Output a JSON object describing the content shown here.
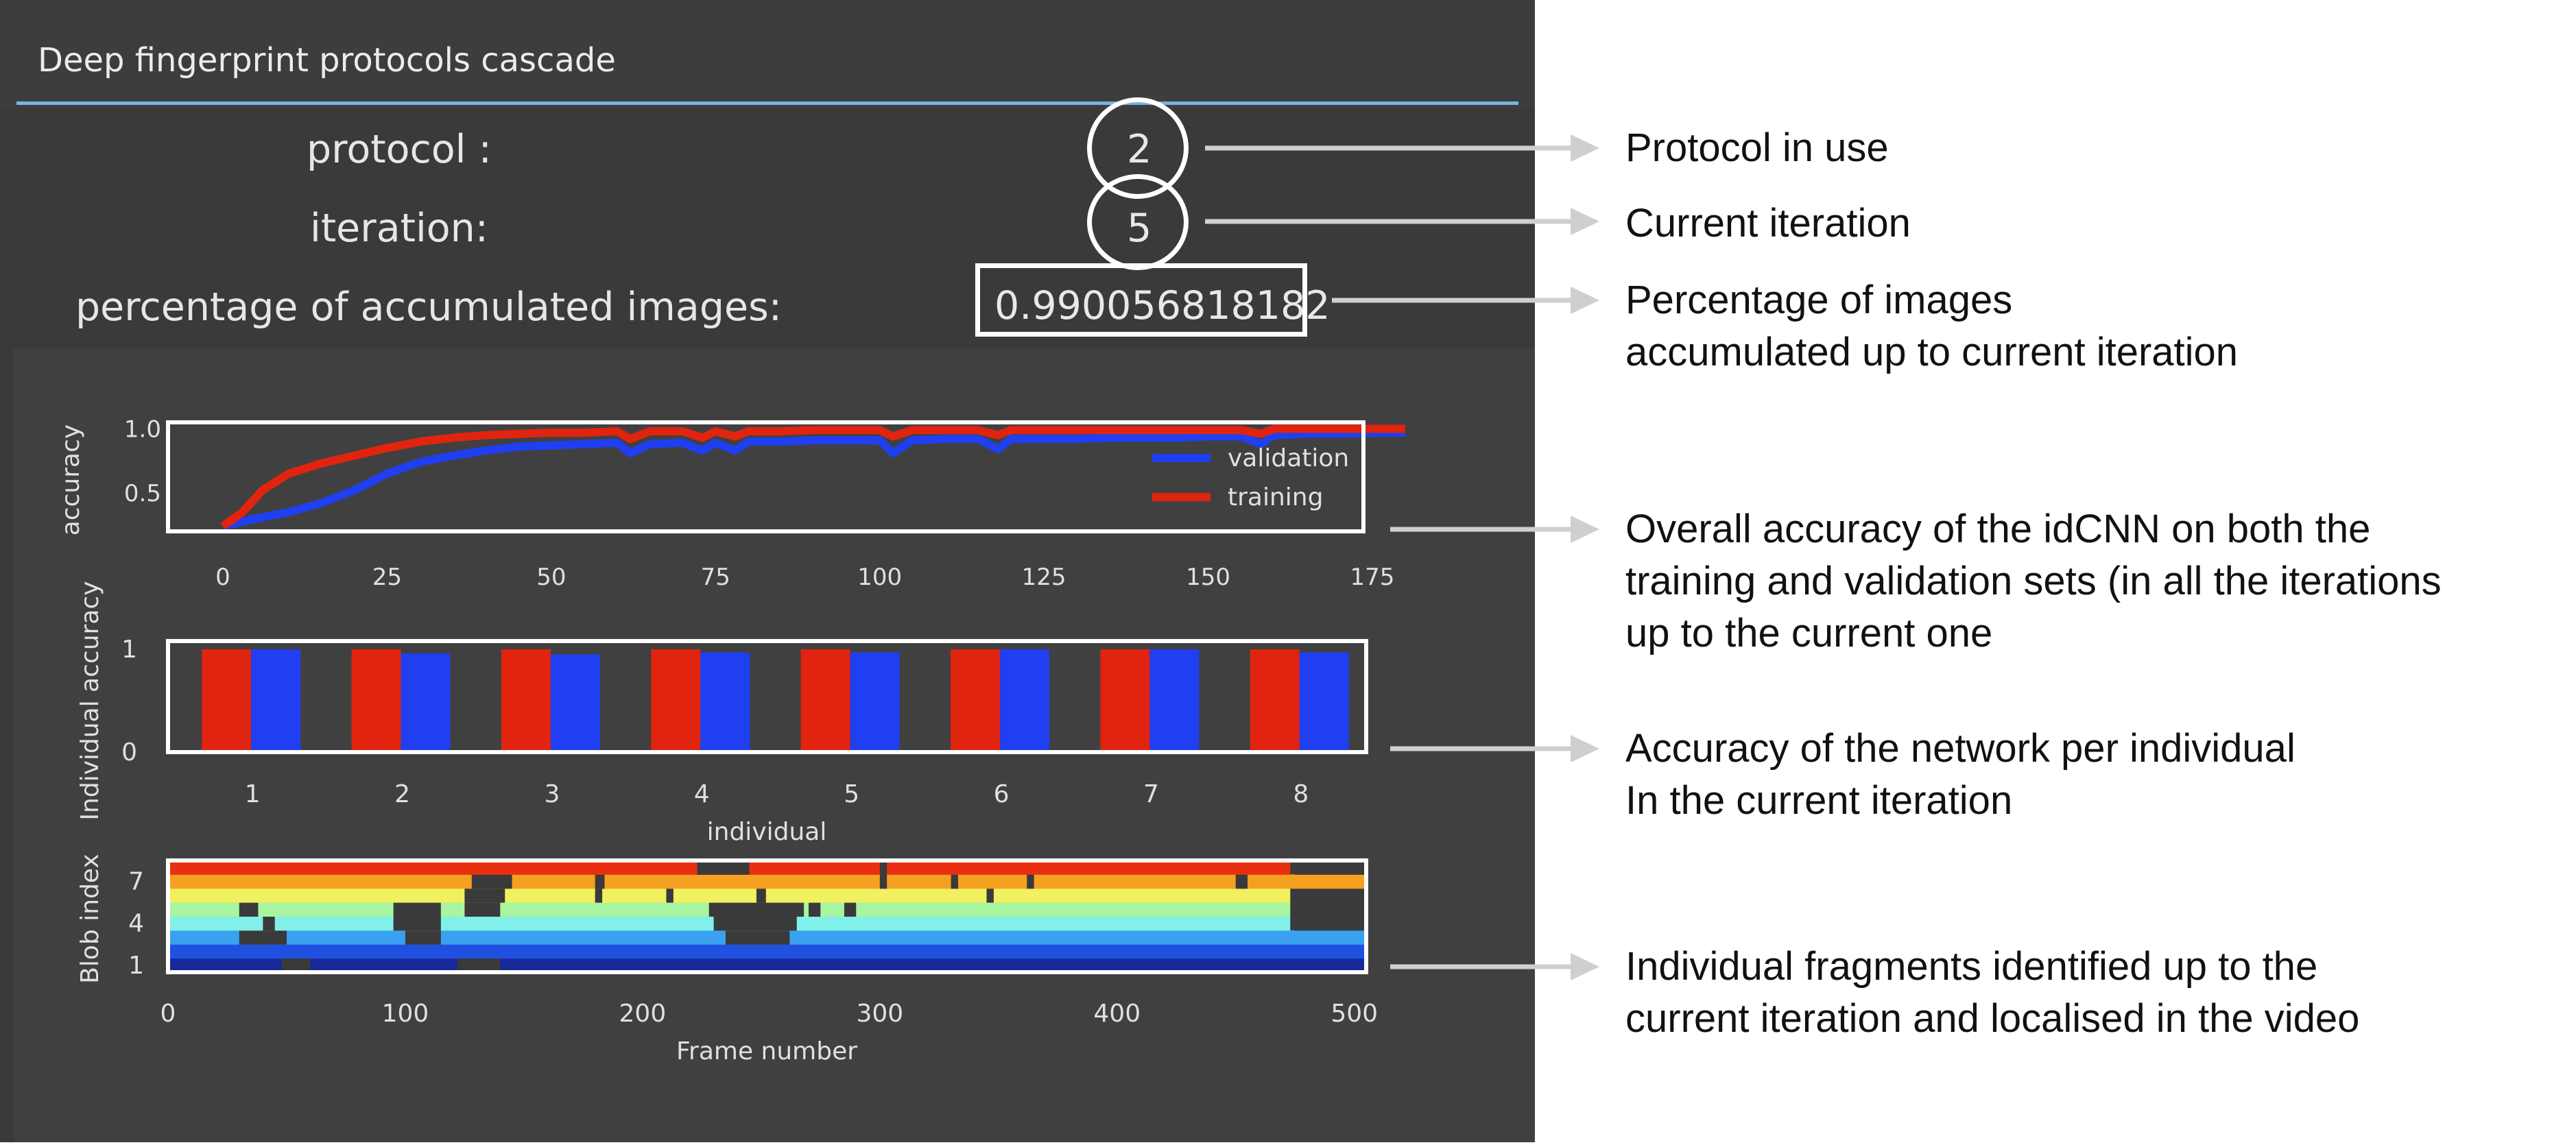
{
  "window": {
    "title": "Deep fingerprint protocols cascade"
  },
  "fields": {
    "protocol": {
      "label": "protocol :",
      "value": "2"
    },
    "iteration": {
      "label": "iteration:",
      "value": "5"
    },
    "percentage": {
      "label": "percentage of accumulated images:",
      "value": "0.990056818182"
    }
  },
  "annotations": {
    "protocol": [
      "Protocol in use"
    ],
    "iteration": [
      "Current iteration"
    ],
    "percentage": [
      "Percentage of images",
      "accumulated up to current iteration"
    ],
    "accuracy": [
      "Overall accuracy of the idCNN on both the",
      "training and validation sets (in all the iterations",
      "up to the current one"
    ],
    "individual": [
      "Accuracy of the network per individual",
      "In the current iteration"
    ],
    "fragments": [
      "Individual fragments identified up to the",
      "current iteration and localised in the video"
    ]
  },
  "colors": {
    "training": "#e0240f",
    "validation": "#1f3ff0",
    "annotation_arrow": "#cfcfcf",
    "background": "#3a3a3a"
  },
  "chart_data": [
    {
      "type": "line",
      "ylabel": "accuracy",
      "xlim": [
        0,
        182
      ],
      "ylim": [
        0.2,
        1.05
      ],
      "xticks": [
        "0",
        "25",
        "50",
        "75",
        "100",
        "125",
        "150",
        "175"
      ],
      "yticks": [
        "0.5",
        "1.0"
      ],
      "legend_position": "right",
      "series": [
        {
          "name": "validation",
          "color": "#1f3ff0",
          "x": [
            0,
            5,
            10,
            15,
            20,
            25,
            30,
            35,
            40,
            45,
            50,
            55,
            60,
            62,
            65,
            70,
            73,
            75,
            78,
            80,
            85,
            90,
            95,
            100,
            102,
            105,
            110,
            115,
            118,
            120,
            125,
            130,
            135,
            140,
            145,
            150,
            155,
            158,
            160,
            165,
            170,
            175,
            180
          ],
          "y": [
            0.24,
            0.3,
            0.35,
            0.42,
            0.52,
            0.65,
            0.74,
            0.79,
            0.83,
            0.86,
            0.87,
            0.88,
            0.89,
            0.81,
            0.88,
            0.89,
            0.83,
            0.89,
            0.83,
            0.9,
            0.9,
            0.91,
            0.91,
            0.91,
            0.81,
            0.91,
            0.92,
            0.92,
            0.84,
            0.92,
            0.92,
            0.92,
            0.93,
            0.93,
            0.93,
            0.94,
            0.94,
            0.88,
            0.95,
            0.96,
            0.96,
            0.97,
            0.97
          ]
        },
        {
          "name": "training",
          "color": "#e0240f",
          "x": [
            0,
            3,
            6,
            10,
            15,
            20,
            25,
            30,
            35,
            40,
            45,
            50,
            55,
            60,
            62,
            65,
            70,
            73,
            75,
            78,
            80,
            85,
            90,
            95,
            100,
            102,
            105,
            110,
            115,
            118,
            120,
            125,
            130,
            140,
            150,
            155,
            158,
            160,
            170,
            180
          ],
          "y": [
            0.24,
            0.35,
            0.52,
            0.65,
            0.73,
            0.79,
            0.85,
            0.9,
            0.93,
            0.95,
            0.96,
            0.97,
            0.97,
            0.98,
            0.92,
            0.98,
            0.98,
            0.93,
            0.98,
            0.94,
            0.98,
            0.98,
            0.99,
            0.99,
            0.99,
            0.94,
            0.99,
            0.99,
            0.99,
            0.95,
            0.99,
            0.99,
            0.99,
            0.99,
            0.99,
            0.99,
            0.96,
            1.0,
            1.0,
            1.0
          ]
        }
      ]
    },
    {
      "type": "bar",
      "xlabel": "individual",
      "ylabel": "Individual accuracy",
      "categories": [
        "1",
        "2",
        "3",
        "4",
        "5",
        "6",
        "7",
        "8"
      ],
      "ylim": [
        0,
        1
      ],
      "yticks": [
        "0",
        "1"
      ],
      "series": [
        {
          "name": "training",
          "color": "#e0240f",
          "values": [
            1,
            1,
            1,
            1,
            1,
            1,
            1,
            1
          ]
        },
        {
          "name": "validation",
          "color": "#1f3ff0",
          "values": [
            1,
            0.96,
            0.95,
            0.97,
            0.97,
            1,
            1,
            0.97
          ]
        }
      ]
    },
    {
      "type": "heatmap",
      "xlabel": "Frame number",
      "ylabel": "Blob index",
      "xlim": [
        0,
        505
      ],
      "xticks": [
        "0",
        "100",
        "200",
        "300",
        "400",
        "500"
      ],
      "yticks": [
        "1",
        "4",
        "7"
      ],
      "row_colors": [
        "#182a9a",
        "#2050e0",
        "#3aa0f0",
        "#80f0e8",
        "#a8f5a0",
        "#f0f060",
        "#f5a020",
        "#e83010"
      ],
      "rows": [
        {
          "blob": 1,
          "color": "#182a9a",
          "start": 0,
          "end": 505,
          "gaps": [
            [
              48,
              60
            ],
            [
              122,
              140
            ]
          ]
        },
        {
          "blob": 2,
          "color": "#2050e0",
          "start": 0,
          "end": 505,
          "gaps": []
        },
        {
          "blob": 3,
          "color": "#3aa0f0",
          "start": 0,
          "end": 505,
          "gaps": [
            [
              30,
              50
            ],
            [
              100,
              115
            ],
            [
              235,
              262
            ]
          ]
        },
        {
          "blob": 4,
          "color": "#80f0e8",
          "start": 0,
          "end": 473,
          "gaps": [
            [
              40,
              45
            ],
            [
              95,
              115
            ],
            [
              230,
              265
            ],
            [
              475,
              505
            ]
          ]
        },
        {
          "blob": 5,
          "color": "#a8f5a0",
          "start": 0,
          "end": 473,
          "gaps": [
            [
              30,
              38
            ],
            [
              95,
              115
            ],
            [
              125,
              140
            ],
            [
              228,
              268
            ],
            [
              270,
              275
            ],
            [
              285,
              290
            ]
          ]
        },
        {
          "blob": 6,
          "color": "#f0f060",
          "start": 0,
          "end": 473,
          "gaps": [
            [
              125,
              142
            ],
            [
              180,
              183
            ],
            [
              210,
              213
            ],
            [
              248,
              252
            ],
            [
              345,
              348
            ]
          ]
        },
        {
          "blob": 7,
          "color": "#f5a020",
          "start": 0,
          "end": 505,
          "gaps": [
            [
              128,
              145
            ],
            [
              180,
              184
            ],
            [
              300,
              303
            ],
            [
              330,
              333
            ],
            [
              362,
              365
            ],
            [
              450,
              455
            ]
          ]
        },
        {
          "blob": 8,
          "color": "#e83010",
          "start": 0,
          "end": 473,
          "gaps": [
            [
              223,
              245
            ],
            [
              300,
              303
            ],
            [
              475,
              505
            ]
          ]
        }
      ]
    }
  ]
}
